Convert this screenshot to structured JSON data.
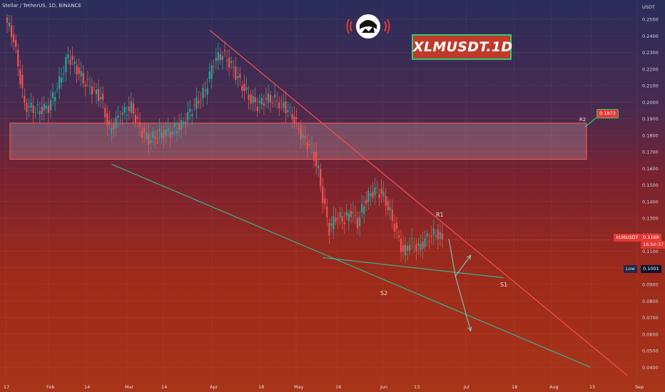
{
  "header": {
    "text": "Stellar / TetherUS, 1D, BINANCE"
  },
  "title_badge": "XLMUSDT.1D",
  "price_axis": {
    "unit": "USDT",
    "ticks": [
      "0.2500",
      "0.2400",
      "0.2300",
      "0.2200",
      "0.2100",
      "0.2000",
      "0.1900",
      "0.1800",
      "0.1700",
      "0.1600",
      "0.1500",
      "0.1400",
      "0.1300",
      "0.1200",
      "0.1100",
      "0.1000",
      "0.0900",
      "0.0800",
      "0.0700",
      "0.0600",
      "0.0500",
      "0.0400"
    ]
  },
  "time_axis": {
    "ticks": [
      "17",
      "Feb",
      "14",
      "Mar",
      "14",
      "Apr",
      "18",
      "May",
      "16",
      "Jun",
      "13",
      "Jul",
      "18",
      "Aug",
      "15",
      "Sep"
    ]
  },
  "badges": {
    "symbol": "XLMUSDT",
    "price": "0.1168",
    "countdown": "16:50:37",
    "low_label": "Low",
    "low_value": "0.1001",
    "r2_value": "0.1873"
  },
  "labels": {
    "r1": "R1",
    "r2": "R2",
    "s1": "S1",
    "s2": "S2"
  },
  "colors": {
    "bull": "#26a69a",
    "bear": "#ef5350",
    "resistance": "#ef4b5a",
    "support": "#3fa888",
    "zone_fill": "#ffffff",
    "zone_stroke": "#ff5a5a",
    "arrow": "#7ec8c8"
  },
  "chart_data": {
    "type": "candlestick",
    "title": "Stellar / TetherUS, 1D, BINANCE",
    "ylabel": "USDT",
    "ylim": [
      0.04,
      0.255
    ],
    "x_ticks": [
      "17",
      "Feb",
      "14",
      "Mar",
      "14",
      "Apr",
      "18",
      "May",
      "16",
      "Jun",
      "13",
      "Jul",
      "18",
      "Aug",
      "15",
      "Sep"
    ],
    "y_ticks": [
      0.25,
      0.24,
      0.23,
      0.22,
      0.21,
      0.2,
      0.19,
      0.18,
      0.17,
      0.16,
      0.15,
      0.14,
      0.13,
      0.12,
      0.11,
      0.1,
      0.09,
      0.08,
      0.07,
      0.06,
      0.05,
      0.04
    ],
    "last_price": 0.1168,
    "low": 0.1001,
    "close_waypoints": [
      [
        0,
        0.248
      ],
      [
        3,
        0.238
      ],
      [
        8,
        0.198
      ],
      [
        14,
        0.195
      ],
      [
        19,
        0.197
      ],
      [
        24,
        0.212
      ],
      [
        28,
        0.228
      ],
      [
        31,
        0.222
      ],
      [
        35,
        0.213
      ],
      [
        39,
        0.208
      ],
      [
        43,
        0.203
      ],
      [
        47,
        0.183
      ],
      [
        52,
        0.192
      ],
      [
        57,
        0.197
      ],
      [
        61,
        0.184
      ],
      [
        65,
        0.177
      ],
      [
        70,
        0.181
      ],
      [
        75,
        0.182
      ],
      [
        80,
        0.186
      ],
      [
        85,
        0.196
      ],
      [
        91,
        0.207
      ],
      [
        95,
        0.225
      ],
      [
        99,
        0.229
      ],
      [
        103,
        0.222
      ],
      [
        107,
        0.212
      ],
      [
        111,
        0.203
      ],
      [
        115,
        0.198
      ],
      [
        119,
        0.202
      ],
      [
        123,
        0.201
      ],
      [
        127,
        0.198
      ],
      [
        131,
        0.192
      ],
      [
        136,
        0.178
      ],
      [
        140,
        0.172
      ],
      [
        143,
        0.158
      ],
      [
        145,
        0.142
      ],
      [
        148,
        0.123
      ],
      [
        151,
        0.131
      ],
      [
        155,
        0.129
      ],
      [
        158,
        0.134
      ],
      [
        161,
        0.127
      ],
      [
        164,
        0.139
      ],
      [
        167,
        0.145
      ],
      [
        170,
        0.147
      ],
      [
        173,
        0.143
      ],
      [
        176,
        0.133
      ],
      [
        179,
        0.121
      ],
      [
        182,
        0.109
      ],
      [
        185,
        0.115
      ],
      [
        189,
        0.112
      ],
      [
        193,
        0.118
      ],
      [
        197,
        0.121
      ],
      [
        200,
        0.1168
      ]
    ],
    "zone_r2": {
      "y_top": 0.1873,
      "y_bottom": 0.1655,
      "x_start": 0,
      "x_end": 261
    },
    "trendlines": [
      {
        "name": "R1",
        "points": [
          [
            93,
            0.2435
          ],
          [
            285,
            0.035
          ]
        ]
      },
      {
        "name": "S2",
        "points": [
          [
            48,
            0.1625
          ],
          [
            268,
            0.04
          ]
        ]
      },
      {
        "name": "S1",
        "points": [
          [
            145,
            0.1062
          ],
          [
            228,
            0.094
          ]
        ]
      }
    ],
    "projections": [
      {
        "points": [
          [
            203,
            0.1175
          ],
          [
            206,
            0.095
          ],
          [
            213,
            0.1075
          ]
        ]
      },
      {
        "points": [
          [
            206,
            0.095
          ],
          [
            213,
            0.062
          ]
        ]
      }
    ]
  }
}
